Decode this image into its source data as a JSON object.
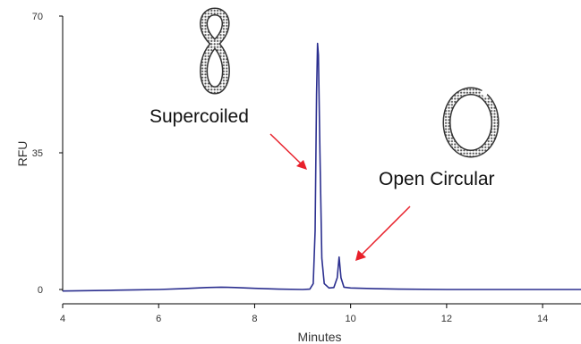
{
  "chart_data": {
    "type": "line",
    "title": "",
    "xlabel": "Minutes",
    "ylabel": "RFU",
    "xlim": [
      4,
      14.8
    ],
    "ylim": [
      -2,
      71
    ],
    "x_ticks": [
      4,
      6,
      8,
      10,
      12,
      14
    ],
    "y_ticks": [
      0,
      35,
      70
    ],
    "grid": false,
    "legend": "none",
    "series": [
      {
        "color": "#2b2f8f",
        "points": [
          [
            4.0,
            -0.4
          ],
          [
            4.5,
            -0.3
          ],
          [
            5.0,
            -0.2
          ],
          [
            5.5,
            -0.1
          ],
          [
            6.0,
            0.0
          ],
          [
            6.5,
            0.2
          ],
          [
            7.0,
            0.5
          ],
          [
            7.3,
            0.6
          ],
          [
            7.6,
            0.5
          ],
          [
            8.0,
            0.3
          ],
          [
            8.5,
            0.1
          ],
          [
            9.0,
            0.0
          ],
          [
            9.15,
            0.1
          ],
          [
            9.22,
            1.5
          ],
          [
            9.26,
            15.0
          ],
          [
            9.29,
            50.0
          ],
          [
            9.31,
            63.0
          ],
          [
            9.33,
            60.0
          ],
          [
            9.36,
            35.0
          ],
          [
            9.4,
            8.0
          ],
          [
            9.45,
            1.5
          ],
          [
            9.55,
            0.4
          ],
          [
            9.65,
            0.5
          ],
          [
            9.72,
            3.0
          ],
          [
            9.76,
            8.3
          ],
          [
            9.8,
            3.0
          ],
          [
            9.86,
            0.6
          ],
          [
            10.0,
            0.4
          ],
          [
            10.5,
            0.2
          ],
          [
            11.0,
            0.1
          ],
          [
            12.0,
            0.0
          ],
          [
            13.0,
            0.0
          ],
          [
            14.0,
            0.0
          ],
          [
            14.8,
            0.0
          ]
        ]
      }
    ],
    "annotations": [
      {
        "text": "Supercoiled",
        "arrow_to": [
          9.15,
          30.0
        ],
        "label_at": [
          7.7,
          44.0
        ],
        "shape": "figure-eight"
      },
      {
        "text": "Open Circular",
        "arrow_to": [
          9.8,
          7.0
        ],
        "label_at": [
          11.0,
          27.0
        ],
        "shape": "circle"
      }
    ],
    "arrow_color": "#e8202a"
  }
}
